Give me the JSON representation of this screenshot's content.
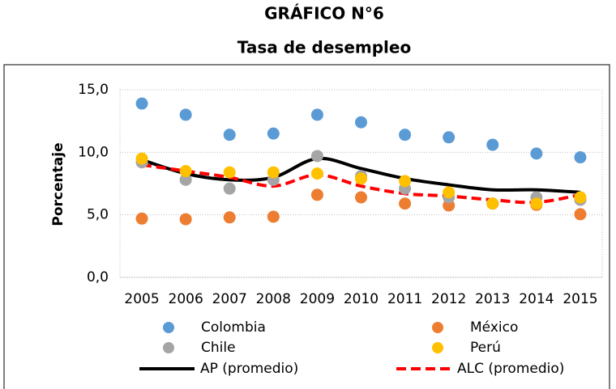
{
  "chart_data": {
    "type": "line",
    "title": "GRÁFICO N°6",
    "subtitle": "Tasa de desempleo",
    "y_label": "Porcentaje",
    "x": [
      2005,
      2006,
      2007,
      2008,
      2009,
      2010,
      2011,
      2012,
      2013,
      2014,
      2015
    ],
    "series": [
      {
        "name": "Colombia",
        "color": "#5b9bd5",
        "style": "marker",
        "values": [
          13.9,
          13.0,
          11.4,
          11.5,
          13.0,
          12.4,
          11.4,
          11.2,
          10.6,
          9.9,
          9.6
        ]
      },
      {
        "name": "México",
        "color": "#ed7d31",
        "style": "marker",
        "values": [
          4.7,
          4.65,
          4.8,
          4.85,
          6.6,
          6.4,
          5.9,
          5.75,
          5.9,
          5.8,
          5.05
        ]
      },
      {
        "name": "Chile",
        "color": "#a5a5a5",
        "style": "marker",
        "values": [
          9.2,
          7.8,
          7.1,
          7.8,
          9.7,
          8.1,
          7.1,
          6.4,
          5.9,
          6.4,
          6.2
        ]
      },
      {
        "name": "Perú",
        "color": "#ffc000",
        "style": "marker",
        "values": [
          9.5,
          8.5,
          8.4,
          8.4,
          8.3,
          7.9,
          7.7,
          6.8,
          5.9,
          5.9,
          6.4
        ]
      },
      {
        "name": "AP (promedio)",
        "color": "#000000",
        "style": "solid",
        "values": [
          9.4,
          8.3,
          7.8,
          8.0,
          9.5,
          8.7,
          7.9,
          7.4,
          7.0,
          7.0,
          6.8
        ]
      },
      {
        "name": "ALC (promedio)",
        "color": "#ff0000",
        "style": "dashed",
        "values": [
          9.0,
          8.5,
          8.0,
          7.3,
          8.2,
          7.3,
          6.7,
          6.5,
          6.2,
          6.0,
          6.6
        ]
      }
    ],
    "xlim": [
      2004.5,
      2015.5
    ],
    "ylim": [
      0,
      15
    ],
    "yticks": [
      {
        "value": 0,
        "label": "0,0"
      },
      {
        "value": 5,
        "label": "5,0"
      },
      {
        "value": 10,
        "label": "10,0"
      },
      {
        "value": 15,
        "label": "15,0"
      }
    ],
    "grid": true
  }
}
